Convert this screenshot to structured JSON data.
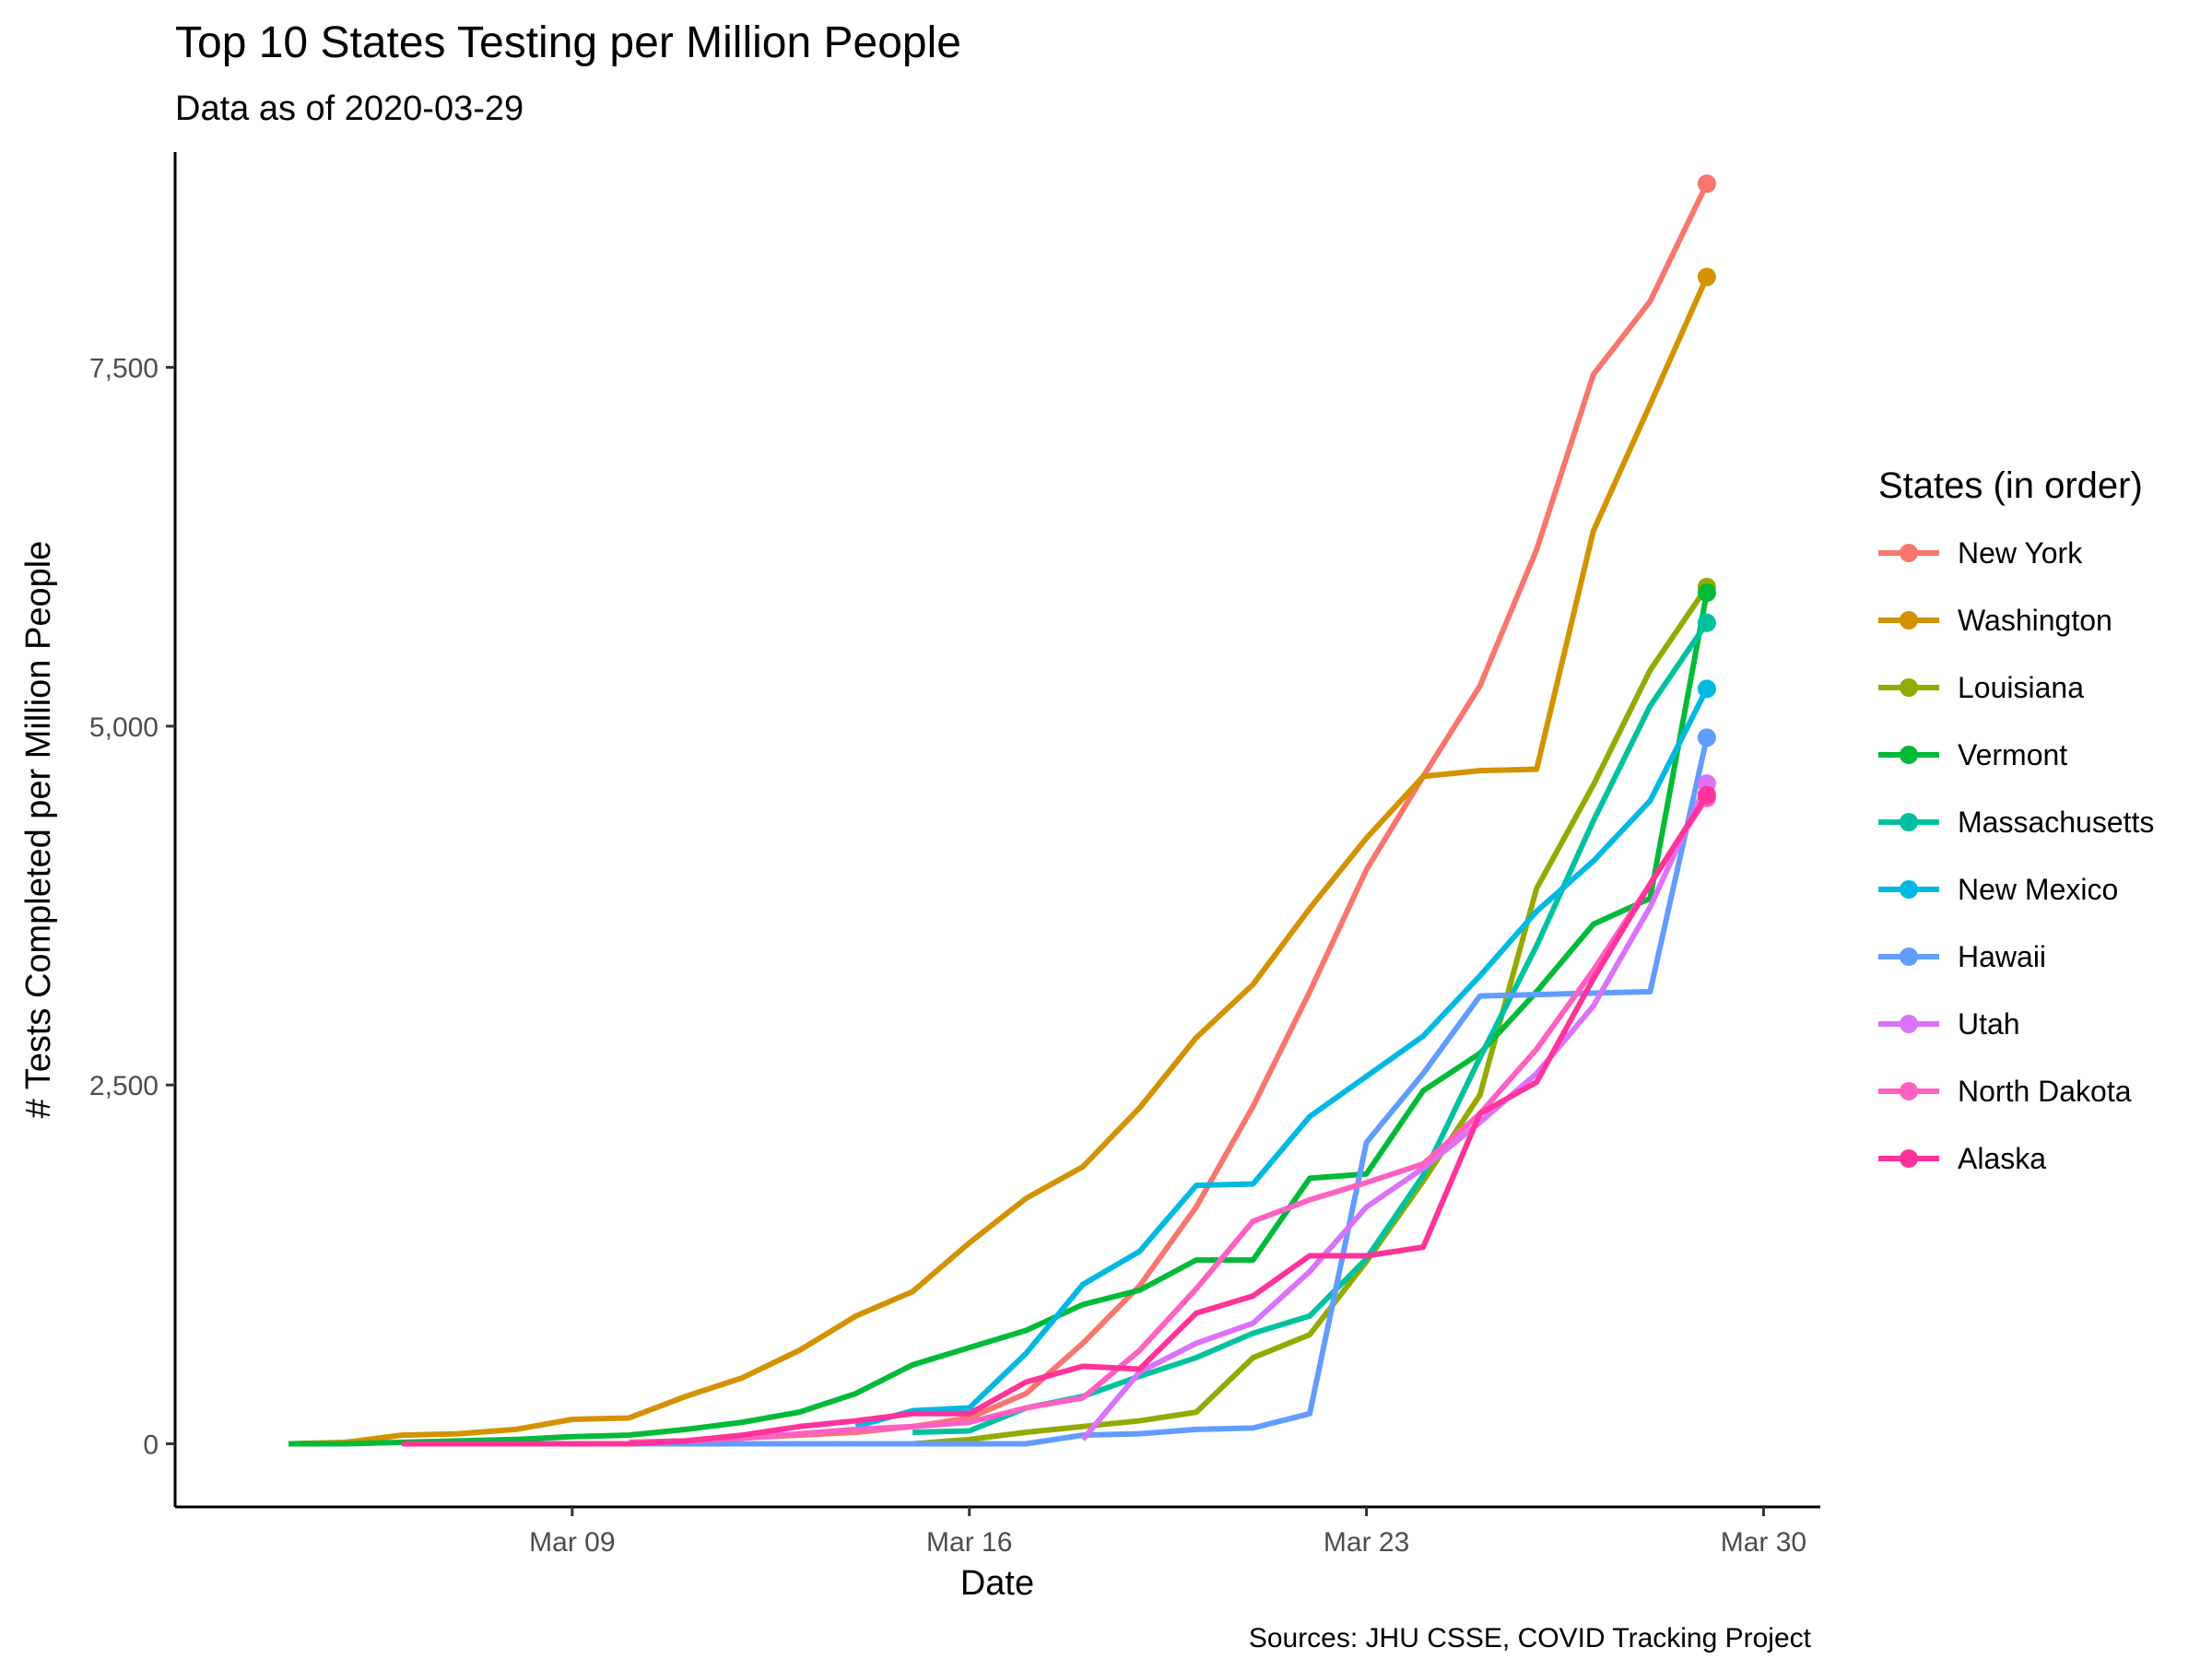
{
  "chart_data": {
    "type": "line",
    "title": "Top 10 States Testing per Million People",
    "subtitle": "Data as of 2020-03-29",
    "xlabel": "Date",
    "ylabel": "# Tests Completed per Million People",
    "caption": "Sources: JHU CSSE, COVID Tracking Project",
    "legend_title": "States (in order)",
    "legend_position": "right",
    "grid": false,
    "x_ticks": [
      "2020-03-09",
      "2020-03-16",
      "2020-03-23",
      "2020-03-30"
    ],
    "x_tick_labels": [
      "Mar 09",
      "Mar 16",
      "Mar 23",
      "Mar 30"
    ],
    "y_ticks": [
      0,
      2500,
      5000,
      7500
    ],
    "y_tick_labels": [
      "0",
      "2,500",
      "5,000",
      "7,500"
    ],
    "xlim": [
      "2020-03-02",
      "2020-03-31"
    ],
    "ylim": [
      -440,
      9000
    ],
    "dates": [
      "2020-03-04",
      "2020-03-05",
      "2020-03-06",
      "2020-03-07",
      "2020-03-08",
      "2020-03-09",
      "2020-03-10",
      "2020-03-11",
      "2020-03-12",
      "2020-03-13",
      "2020-03-14",
      "2020-03-15",
      "2020-03-16",
      "2020-03-17",
      "2020-03-18",
      "2020-03-19",
      "2020-03-20",
      "2020-03-21",
      "2020-03-22",
      "2020-03-23",
      "2020-03-24",
      "2020-03-25",
      "2020-03-26",
      "2020-03-27",
      "2020-03-28",
      "2020-03-29"
    ],
    "series": [
      {
        "name": "New York",
        "color": "#F8766D",
        "values": [
          null,
          null,
          null,
          null,
          null,
          null,
          10,
          20,
          40,
          60,
          80,
          120,
          180,
          350,
          700,
          1100,
          1650,
          2350,
          3150,
          4000,
          4650,
          5280,
          6230,
          7450,
          7960,
          8780
        ]
      },
      {
        "name": "Washington",
        "color": "#D39200",
        "values": [
          0,
          10,
          60,
          70,
          100,
          170,
          180,
          330,
          460,
          650,
          890,
          1060,
          1400,
          1710,
          1930,
          2340,
          2830,
          3200,
          3730,
          4220,
          4650,
          4690,
          4700,
          6360,
          7240,
          8130
        ]
      },
      {
        "name": "Louisiana",
        "color": "#93AA00",
        "values": [
          null,
          null,
          null,
          null,
          null,
          null,
          null,
          null,
          null,
          null,
          null,
          0,
          30,
          80,
          120,
          160,
          220,
          600,
          760,
          1270,
          1830,
          2430,
          3870,
          4590,
          5390,
          5970
        ]
      },
      {
        "name": "Vermont",
        "color": "#00BA38",
        "values": [
          0,
          0,
          10,
          20,
          30,
          50,
          60,
          100,
          150,
          220,
          350,
          550,
          670,
          790,
          970,
          1070,
          1280,
          1280,
          1850,
          1880,
          2460,
          2720,
          3150,
          3620,
          3800,
          5930
        ]
      },
      {
        "name": "Massachusetts",
        "color": "#00C19F",
        "values": [
          null,
          null,
          null,
          null,
          null,
          null,
          null,
          null,
          null,
          null,
          null,
          80,
          90,
          250,
          330,
          470,
          600,
          770,
          890,
          1290,
          1870,
          2690,
          3470,
          4340,
          5140,
          5720
        ]
      },
      {
        "name": "New Mexico",
        "color": "#00B9E3",
        "values": [
          null,
          null,
          null,
          null,
          null,
          null,
          null,
          null,
          null,
          null,
          120,
          230,
          250,
          630,
          1110,
          1340,
          1800,
          1810,
          2280,
          2560,
          2840,
          3260,
          3710,
          4060,
          4480,
          5260
        ]
      },
      {
        "name": "Hawaii",
        "color": "#619CFF",
        "values": [
          null,
          null,
          null,
          null,
          0,
          0,
          0,
          0,
          0,
          0,
          0,
          0,
          0,
          0,
          60,
          70,
          100,
          110,
          210,
          2100,
          2580,
          3120,
          3130,
          3140,
          3150,
          4920
        ]
      },
      {
        "name": "Utah",
        "color": "#DB72FB",
        "values": [
          null,
          null,
          null,
          null,
          null,
          null,
          null,
          null,
          null,
          null,
          null,
          null,
          null,
          null,
          30,
          500,
          700,
          840,
          1200,
          1650,
          1920,
          2240,
          2580,
          3050,
          3740,
          4600
        ]
      },
      {
        "name": "North Dakota",
        "color": "#FF61C3",
        "values": [
          null,
          null,
          null,
          null,
          null,
          null,
          10,
          20,
          40,
          70,
          100,
          120,
          150,
          250,
          320,
          650,
          1080,
          1550,
          1700,
          1820,
          1950,
          2300,
          2750,
          3300,
          3900,
          4500
        ]
      },
      {
        "name": "Alaska",
        "color": "#FF3399",
        "values": [
          null,
          null,
          0,
          0,
          0,
          0,
          0,
          20,
          60,
          120,
          160,
          210,
          210,
          430,
          540,
          520,
          910,
          1030,
          1310,
          1310,
          1370,
          2300,
          2520,
          3240,
          3900,
          4520
        ]
      }
    ]
  }
}
